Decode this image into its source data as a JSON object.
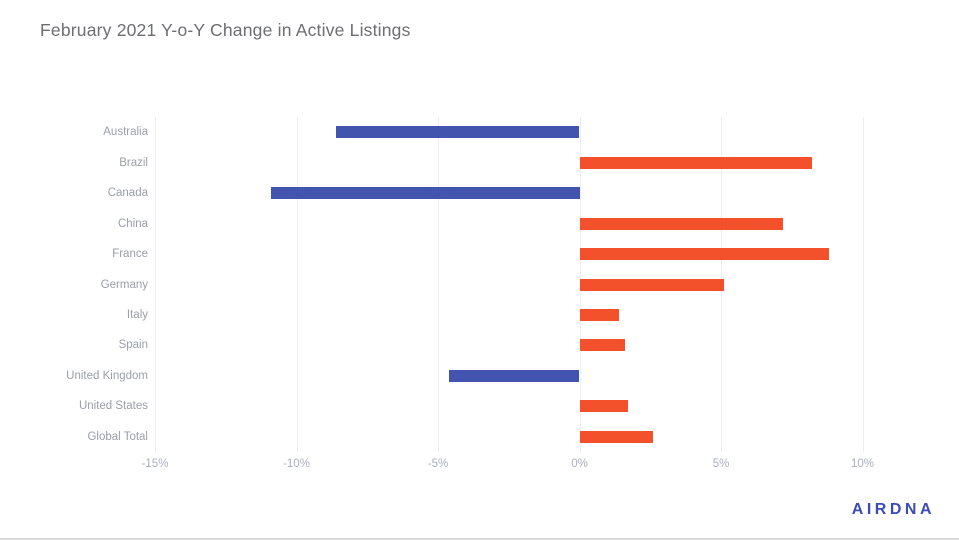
{
  "page": {
    "title": "February 2021 Y-o-Y Change in Active Listings",
    "logo_text": "AIRDNA"
  },
  "chart_data": {
    "type": "bar",
    "orientation": "horizontal",
    "title": "February 2021 Y-o-Y Change in Active Listings",
    "categories": [
      "Australia",
      "Brazil",
      "Canada",
      "China",
      "France",
      "Germany",
      "Italy",
      "Spain",
      "United Kingdom",
      "United States",
      "Global Total"
    ],
    "values": [
      -8.6,
      8.2,
      -10.9,
      7.2,
      8.8,
      5.1,
      1.4,
      1.6,
      -4.6,
      1.7,
      2.6
    ],
    "unit": "%",
    "xlabel": "",
    "ylabel": "",
    "xlim": [
      -15,
      11.5
    ],
    "xticks": [
      -15,
      -10,
      -5,
      0,
      5,
      10
    ],
    "xtick_labels": [
      "-15%",
      "-10%",
      "-5%",
      "0%",
      "5%",
      "10%"
    ],
    "grid": true,
    "legend": false,
    "colors": {
      "negative_bar": "#4254ad",
      "positive_bar": "#f3512c",
      "gridline": "#ededf2",
      "category_label": "#9b9ea8",
      "tick_label": "#abaebf",
      "title": "#6d6e71",
      "logo": "#3c4cb4",
      "background": "#ffffff",
      "bottom_divider": "#d7d7d7"
    }
  }
}
